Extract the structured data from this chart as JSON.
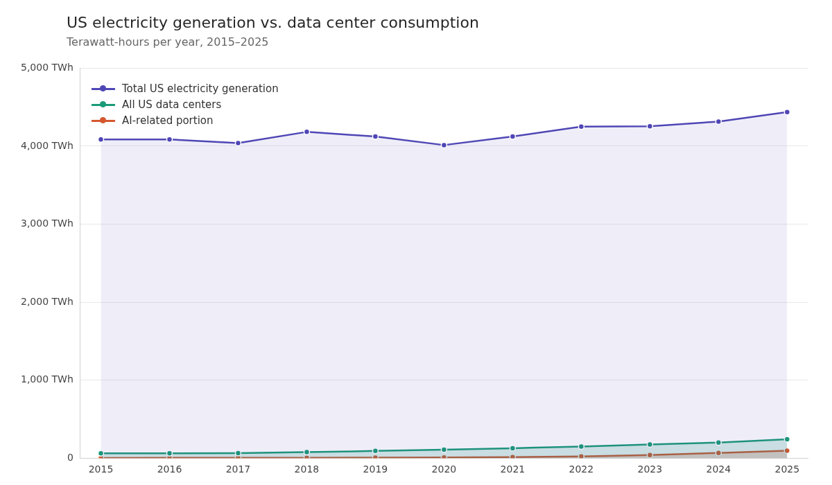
{
  "chart_data": {
    "type": "area",
    "title": "US electricity generation vs. data center consumption",
    "subtitle": "Terawatt-hours per year, 2015–2025",
    "x": [
      2015,
      2016,
      2017,
      2018,
      2019,
      2020,
      2021,
      2022,
      2023,
      2024,
      2025
    ],
    "xlim": [
      2014.7,
      2025.3
    ],
    "xticks": [
      2015,
      2016,
      2017,
      2018,
      2019,
      2020,
      2021,
      2022,
      2023,
      2024,
      2025
    ],
    "ylim": [
      0,
      5000
    ],
    "yticks": [
      {
        "value": 0,
        "label": "0"
      },
      {
        "value": 1000,
        "label": "1,000 TWh"
      },
      {
        "value": 2000,
        "label": "2,000 TWh"
      },
      {
        "value": 3000,
        "label": "3,000 TWh"
      },
      {
        "value": 4000,
        "label": "4,000 TWh"
      },
      {
        "value": 5000,
        "label": "5,000 TWh"
      }
    ],
    "series": [
      {
        "name": "Total US electricity generation",
        "color": "#4f46b5",
        "values": [
          4087,
          4087,
          4039,
          4183,
          4123,
          4014,
          4123,
          4250,
          4256,
          4316,
          4437
        ]
      },
      {
        "name": "All US data centers",
        "color": "#1a9a78",
        "values": [
          61,
          61,
          63,
          77,
          92,
          108,
          127,
          148,
          176,
          199,
          242
        ]
      },
      {
        "name": "AI-related portion",
        "color": "#d4572e",
        "values": [
          2,
          3,
          4,
          5,
          6,
          8,
          12,
          21,
          40,
          67,
          96
        ]
      }
    ],
    "grid": "y",
    "legend": "top left",
    "marker": "circle",
    "line_style": "solid"
  }
}
